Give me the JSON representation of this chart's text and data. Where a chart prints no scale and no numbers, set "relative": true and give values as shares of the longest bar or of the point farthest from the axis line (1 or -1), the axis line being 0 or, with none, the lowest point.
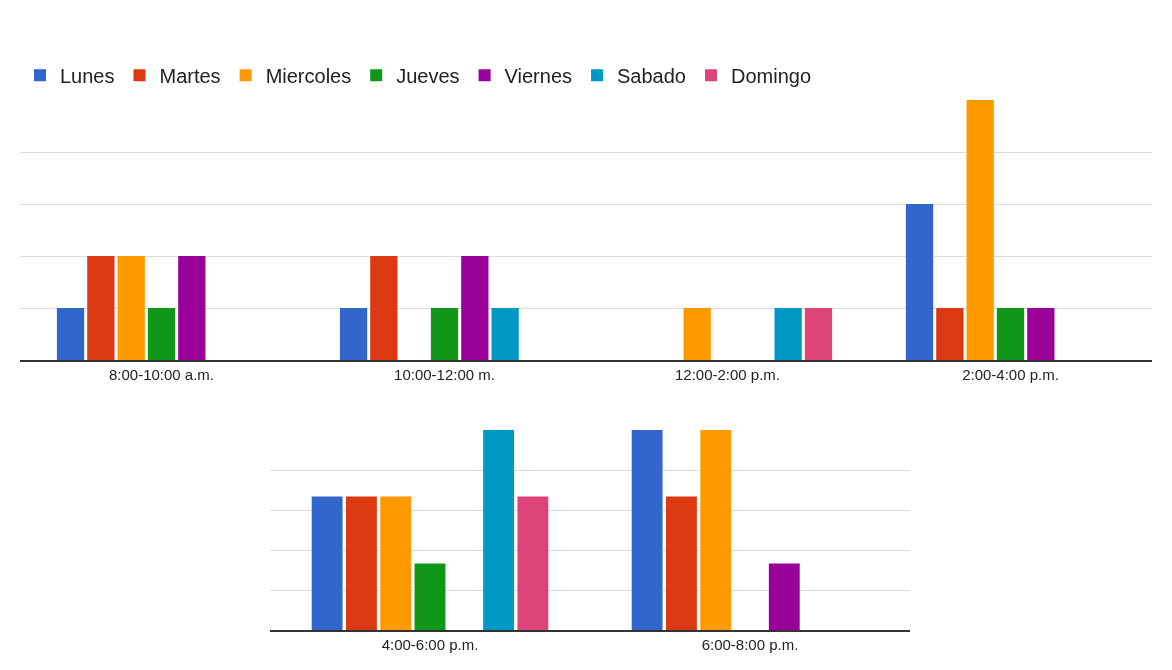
{
  "chart_data": [
    {
      "type": "bar",
      "relative": true,
      "categories": [
        "8:00-10:00 a.m.",
        "10:00-12:00 m.",
        "12:00-2:00 p.m.",
        "2:00-4:00 p.m."
      ],
      "legend": "top",
      "grid": "y",
      "series": [
        {
          "name": "Lunes",
          "color": "#3366cc",
          "values": [
            0.2,
            0.2,
            0,
            0.6
          ]
        },
        {
          "name": "Martes",
          "color": "#dc3912",
          "values": [
            0.4,
            0.4,
            0,
            0.2
          ]
        },
        {
          "name": "Miercoles",
          "color": "#ff9900",
          "values": [
            0.4,
            0,
            0.2,
            1
          ]
        },
        {
          "name": "Jueves",
          "color": "#109618",
          "values": [
            0.2,
            0.2,
            0,
            0.2
          ]
        },
        {
          "name": "Viernes",
          "color": "#990099",
          "values": [
            0.4,
            0.4,
            0,
            0.2
          ]
        },
        {
          "name": "Sabado",
          "color": "#0099c6",
          "values": [
            0,
            0.2,
            0.2,
            null
          ]
        },
        {
          "name": "Domingo",
          "color": "#dd4477",
          "values": [
            0,
            0,
            0.2,
            null
          ]
        }
      ]
    },
    {
      "type": "bar",
      "relative": true,
      "categories": [
        "4:00-6:00 p.m.",
        "6:00-8:00 p.m."
      ],
      "legend": false,
      "grid": "y",
      "series": [
        {
          "color": "#3366cc",
          "values": [
            0.667,
            1
          ]
        },
        {
          "color": "#dc3912",
          "values": [
            0.667,
            0.667
          ]
        },
        {
          "color": "#ff9900",
          "values": [
            0.667,
            1
          ]
        },
        {
          "color": "#109618",
          "values": [
            0.333,
            0
          ]
        },
        {
          "color": "#990099",
          "values": [
            0,
            0.333
          ]
        },
        {
          "color": "#0099c6",
          "values": [
            1,
            0
          ]
        },
        {
          "color": "#dd4477",
          "values": [
            0.667,
            0
          ]
        }
      ]
    }
  ]
}
